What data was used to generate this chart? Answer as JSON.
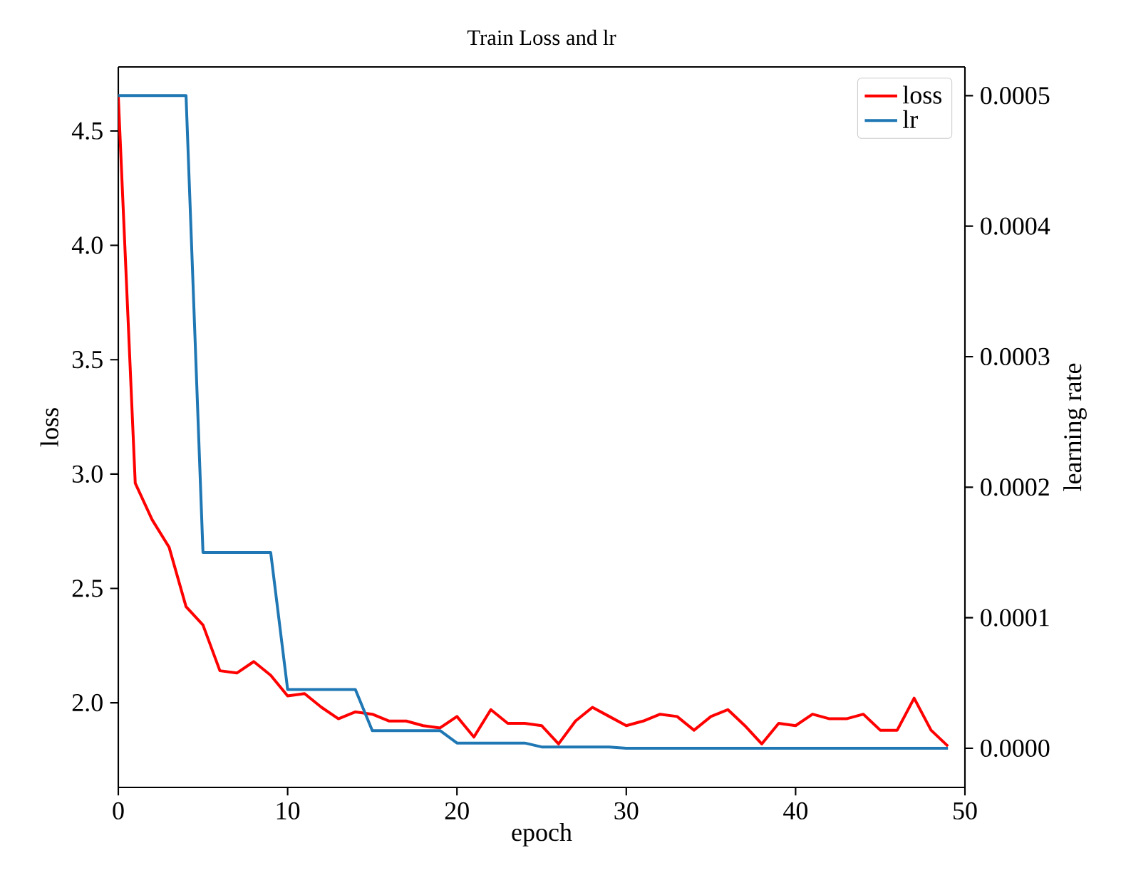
{
  "chart_data": {
    "type": "line",
    "title": "Train Loss and lr",
    "xlabel": "epoch",
    "ylabel": "loss",
    "y2label": "learning  rate",
    "x": [
      0,
      1,
      2,
      3,
      4,
      5,
      6,
      7,
      8,
      9,
      10,
      11,
      12,
      13,
      14,
      15,
      16,
      17,
      18,
      19,
      20,
      21,
      22,
      23,
      24,
      25,
      26,
      27,
      28,
      29,
      30,
      31,
      32,
      33,
      34,
      35,
      36,
      37,
      38,
      39,
      40,
      41,
      42,
      43,
      44,
      45,
      46,
      47,
      48,
      49
    ],
    "series": [
      {
        "name": "loss",
        "color": "#ff0000",
        "values": [
          4.65,
          2.96,
          2.8,
          2.68,
          2.42,
          2.34,
          2.14,
          2.13,
          2.18,
          2.12,
          2.03,
          2.04,
          1.98,
          1.93,
          1.96,
          1.95,
          1.92,
          1.92,
          1.9,
          1.89,
          1.94,
          1.85,
          1.97,
          1.91,
          1.91,
          1.9,
          1.82,
          1.92,
          1.98,
          1.94,
          1.9,
          1.92,
          1.95,
          1.94,
          1.88,
          1.94,
          1.97,
          1.9,
          1.82,
          1.91,
          1.9,
          1.95,
          1.93,
          1.93,
          1.95,
          1.88,
          1.88,
          2.02,
          1.88,
          1.81
        ]
      },
      {
        "name": "lr",
        "color": "#1f77b4",
        "axis": "y2",
        "values": [
          0.0005,
          0.0005,
          0.0005,
          0.0005,
          0.0005,
          0.00015,
          0.00015,
          0.00015,
          0.00015,
          0.00015,
          4.5e-05,
          4.5e-05,
          4.5e-05,
          4.5e-05,
          4.5e-05,
          1.35e-05,
          1.35e-05,
          1.35e-05,
          1.35e-05,
          1.35e-05,
          4e-06,
          4e-06,
          4e-06,
          4e-06,
          4e-06,
          1e-06,
          1e-06,
          1e-06,
          1e-06,
          1e-06,
          0,
          0,
          0,
          0,
          0,
          0,
          0,
          0,
          0,
          0,
          0,
          0,
          0,
          0,
          0,
          0,
          0,
          0,
          0,
          0
        ]
      }
    ],
    "xlim": [
      0,
      50
    ],
    "xticks": [
      0,
      10,
      20,
      30,
      40,
      50
    ],
    "ylim": [
      1.63,
      4.78
    ],
    "yticks": [
      {
        "value": 2,
        "label": "2.0"
      },
      {
        "value": 2.5,
        "label": "2.5"
      },
      {
        "value": 3,
        "label": "3.0"
      },
      {
        "value": 3.5,
        "label": "3.5"
      },
      {
        "value": 4,
        "label": "4.0"
      },
      {
        "value": 4.5,
        "label": "4.5"
      }
    ],
    "y2lim": [
      -3e-05,
      0.000522
    ],
    "y2ticks": [
      {
        "value": 0,
        "label": "0.0000"
      },
      {
        "value": 0.0001,
        "label": "0.0001"
      },
      {
        "value": 0.0002,
        "label": "0.0002"
      },
      {
        "value": 0.0003,
        "label": "0.0003"
      },
      {
        "value": 0.0004,
        "label": "0.0004"
      },
      {
        "value": 0.0005,
        "label": "0.0005"
      }
    ],
    "legend": "top right",
    "marker": "none",
    "line_style": "solid"
  }
}
